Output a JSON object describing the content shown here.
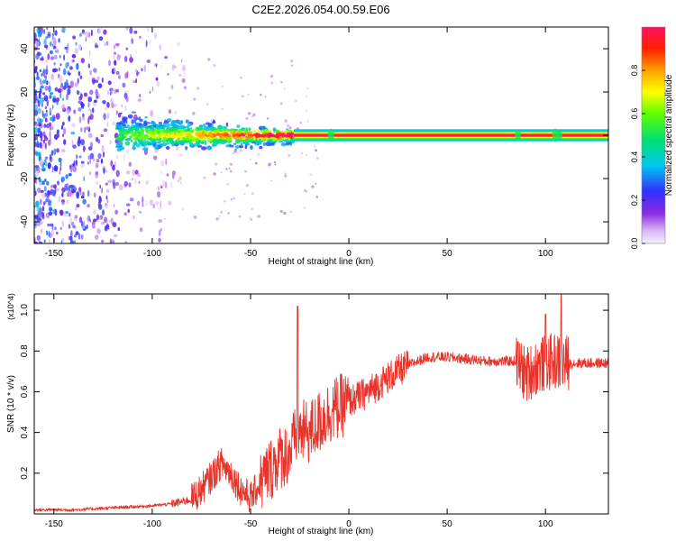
{
  "title": "C2E2.2026.054.00.59.E06",
  "colors": {
    "snr_line": "#e8332a",
    "spectral_band": "#e8332a",
    "frame": "#000000"
  },
  "chart_data": [
    {
      "type": "heatmap",
      "name": "spectrogram",
      "xlabel": "Height of straight line (km)",
      "ylabel": "Frequency (Hz)",
      "xlim": [
        -160,
        132
      ],
      "ylim": [
        -50,
        50
      ],
      "xticks": [
        -150,
        -100,
        -50,
        0,
        50,
        100
      ],
      "yticks": [
        -40,
        -20,
        0,
        20,
        40
      ],
      "colorbar": {
        "label": "Normalized spectral amplitude",
        "range": [
          0,
          1
        ],
        "ticks": [
          "0.0",
          "0.2",
          "0.4",
          "0.6",
          "0.8"
        ],
        "tick_values": [
          0.0,
          0.2,
          0.4,
          0.6,
          0.8
        ]
      },
      "regions": [
        {
          "description": "scattered noise",
          "x_range": [
            -160,
            -82
          ],
          "freq_range": [
            -50,
            50
          ],
          "amplitude": 0.1
        },
        {
          "description": "broad signal band",
          "x_range": [
            -118,
            -28
          ],
          "freq_center": 0,
          "freq_halfwidth": 5,
          "amplitude": 0.4
        },
        {
          "description": "narrow line",
          "x_range": [
            -28,
            132
          ],
          "freq_center": 0,
          "freq_halfwidth": 1,
          "amplitude": 1.0
        }
      ]
    },
    {
      "type": "line",
      "name": "snr",
      "xlabel": "Height of straight line (km)",
      "ylabel": "SNR (10 * v/v)",
      "scale_label": "(x10^4)",
      "xlim": [
        -160,
        132
      ],
      "ylim": [
        0,
        1.08
      ],
      "xticks": [
        -150,
        -100,
        -50,
        0,
        50,
        100
      ],
      "yticks": [
        "0.2",
        "0.4",
        "0.6",
        "0.8",
        "1.0"
      ],
      "ytick_values": [
        0.2,
        0.4,
        0.6,
        0.8,
        1.0
      ],
      "series": [
        {
          "name": "SNR",
          "x": [
            -160,
            -140,
            -120,
            -100,
            -90,
            -80,
            -75,
            -70,
            -65,
            -60,
            -55,
            -50,
            -45,
            -40,
            -35,
            -30,
            -26,
            -20,
            -10,
            0,
            10,
            20,
            30,
            40,
            50,
            60,
            70,
            80,
            85,
            90,
            95,
            100,
            105,
            108,
            110,
            115,
            120,
            132
          ],
          "y": [
            0.02,
            0.02,
            0.03,
            0.04,
            0.05,
            0.07,
            0.12,
            0.18,
            0.25,
            0.2,
            0.12,
            0.08,
            0.15,
            0.22,
            0.28,
            0.3,
            0.4,
            0.4,
            0.5,
            0.55,
            0.6,
            0.67,
            0.73,
            0.77,
            0.77,
            0.76,
            0.75,
            0.75,
            0.75,
            0.68,
            0.72,
            0.74,
            0.75,
            0.74,
            0.74,
            0.74,
            0.74,
            0.74
          ]
        }
      ],
      "peaks": [
        {
          "x": -26,
          "y": 1.02
        },
        {
          "x": 100,
          "y": 0.98
        },
        {
          "x": 108,
          "y": 1.08
        }
      ]
    }
  ]
}
